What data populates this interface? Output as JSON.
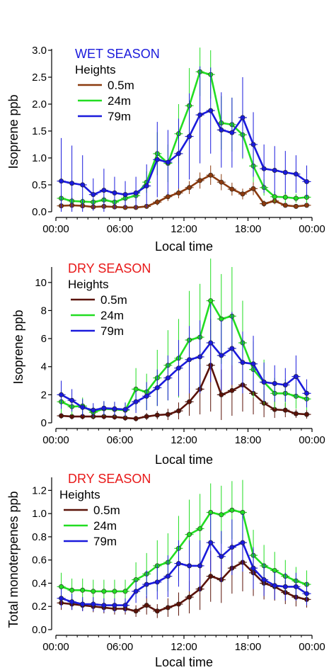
{
  "chart_data": [
    {
      "type": "line",
      "title": "WET SEASON",
      "title_color": "#1a1adc",
      "ylabel": "Isoprene ppb",
      "xlabel": "Local time",
      "ylim": [
        0,
        3.0
      ],
      "yticks": [
        0.0,
        0.5,
        1.0,
        1.5,
        2.0,
        2.5,
        3.0
      ],
      "ytick_labels": [
        "0.0",
        "0.5",
        "1.0",
        "1.5",
        "2.0",
        "2.5",
        "3.0"
      ],
      "xlim": [
        0,
        24
      ],
      "xticks": [
        0,
        6,
        12,
        18,
        24
      ],
      "xtick_labels": [
        "00:00",
        "06:00",
        "12:00",
        "18:00",
        "00:00"
      ],
      "legend_title": "Heights",
      "legend_position": "top-left",
      "x": [
        0.5,
        1.5,
        2.5,
        3.5,
        4.5,
        5.5,
        6.5,
        7.5,
        8.5,
        9.5,
        10.5,
        11.5,
        12.5,
        13.5,
        14.5,
        15.5,
        16.5,
        17.5,
        18.5,
        19.5,
        20.5,
        21.5,
        22.5,
        23.5
      ],
      "series": [
        {
          "name": "0.5m",
          "color": "#8b3a0e",
          "values": [
            0.11,
            0.12,
            0.11,
            0.09,
            0.1,
            0.09,
            0.08,
            0.08,
            0.1,
            0.18,
            0.28,
            0.35,
            0.45,
            0.58,
            0.68,
            0.55,
            0.42,
            0.33,
            0.43,
            0.15,
            0.2,
            0.12,
            0.1,
            0.12
          ],
          "errors": [
            0.03,
            0.03,
            0.03,
            0.03,
            0.03,
            0.03,
            0.03,
            0.03,
            0.03,
            0.06,
            0.08,
            0.1,
            0.12,
            0.15,
            0.18,
            0.15,
            0.12,
            0.1,
            0.12,
            0.06,
            0.06,
            0.04,
            0.03,
            0.04
          ]
        },
        {
          "name": "24m",
          "color": "#22dd22",
          "values": [
            0.25,
            0.2,
            0.19,
            0.18,
            0.22,
            0.18,
            0.25,
            0.3,
            0.55,
            1.08,
            0.9,
            1.45,
            1.97,
            2.6,
            2.55,
            1.65,
            1.62,
            1.43,
            0.85,
            0.45,
            0.28,
            0.27,
            0.25,
            0.27
          ],
          "errors": [
            0.08,
            0.07,
            0.07,
            0.06,
            0.07,
            0.06,
            0.08,
            0.1,
            0.2,
            0.4,
            0.35,
            0.55,
            0.7,
            0.45,
            0.45,
            0.5,
            0.5,
            0.45,
            0.3,
            0.15,
            0.1,
            0.1,
            0.08,
            0.1
          ]
        },
        {
          "name": "79m",
          "color": "#1a1adc",
          "values": [
            0.57,
            0.53,
            0.5,
            0.32,
            0.4,
            0.35,
            0.32,
            0.35,
            0.48,
            0.97,
            0.92,
            1.08,
            1.4,
            1.8,
            1.88,
            1.52,
            1.47,
            1.75,
            1.25,
            0.8,
            0.77,
            0.73,
            0.7,
            0.56
          ],
          "errors": [
            0.8,
            0.7,
            0.55,
            0.3,
            0.4,
            0.3,
            0.25,
            0.3,
            0.4,
            0.7,
            0.6,
            0.65,
            0.8,
            0.9,
            0.8,
            0.7,
            0.65,
            0.75,
            0.6,
            0.45,
            0.45,
            0.4,
            0.35,
            0.3
          ]
        }
      ]
    },
    {
      "type": "line",
      "title": "DRY SEASON",
      "title_color": "#e81818",
      "ylabel": "Isoprene ppb",
      "xlabel": "Local time",
      "ylim": [
        0,
        11
      ],
      "yticks": [
        0,
        2,
        4,
        6,
        8,
        10
      ],
      "ytick_labels": [
        "0",
        "2",
        "4",
        "6",
        "8",
        "10"
      ],
      "xlim": [
        0,
        24
      ],
      "xticks": [
        0,
        6,
        12,
        18,
        24
      ],
      "xtick_labels": [
        "00:00",
        "06:00",
        "12:00",
        "18:00",
        "00:00"
      ],
      "legend_title": "Heights",
      "legend_position": "top-left",
      "x": [
        0.5,
        1.5,
        2.5,
        3.5,
        4.5,
        5.5,
        6.5,
        7.5,
        8.5,
        9.5,
        10.5,
        11.5,
        12.5,
        13.5,
        14.5,
        15.5,
        16.5,
        17.5,
        18.5,
        19.5,
        20.5,
        21.5,
        22.5,
        23.5
      ],
      "series": [
        {
          "name": "0.5m",
          "color": "#5a1208",
          "values": [
            0.5,
            0.45,
            0.45,
            0.45,
            0.45,
            0.42,
            0.35,
            0.3,
            0.45,
            0.55,
            0.6,
            0.85,
            1.5,
            2.4,
            4.1,
            2.0,
            2.3,
            2.7,
            2.1,
            1.4,
            0.95,
            0.9,
            0.65,
            0.6
          ],
          "errors": [
            0.2,
            0.2,
            0.2,
            0.2,
            0.2,
            0.2,
            0.2,
            0.2,
            0.25,
            0.3,
            0.4,
            0.6,
            1.0,
            1.8,
            3.3,
            1.8,
            1.8,
            1.9,
            1.5,
            1.0,
            0.6,
            0.5,
            0.3,
            0.3
          ]
        },
        {
          "name": "24m",
          "color": "#22dd22",
          "values": [
            1.5,
            1.15,
            1.2,
            0.75,
            1.0,
            0.95,
            0.9,
            2.4,
            2.2,
            3.2,
            4.1,
            4.6,
            5.9,
            6.1,
            8.7,
            7.4,
            7.6,
            5.7,
            3.8,
            2.9,
            2.1,
            2.1,
            1.9,
            1.7
          ],
          "errors": [
            0.8,
            0.6,
            0.6,
            0.4,
            0.5,
            0.5,
            0.5,
            1.5,
            1.3,
            2.0,
            2.5,
            2.8,
            3.5,
            3.8,
            3.0,
            3.2,
            3.5,
            3.0,
            2.0,
            1.6,
            1.1,
            1.0,
            0.9,
            0.8
          ]
        },
        {
          "name": "79m",
          "color": "#1a1adc",
          "values": [
            2.0,
            1.6,
            1.1,
            0.9,
            1.05,
            1.0,
            0.95,
            1.5,
            1.9,
            2.5,
            3.2,
            3.9,
            4.5,
            4.7,
            5.7,
            4.8,
            5.3,
            4.3,
            4.2,
            2.9,
            2.8,
            2.7,
            3.3,
            2.1
          ],
          "errors": [
            1.0,
            0.8,
            0.6,
            0.5,
            0.5,
            0.5,
            0.5,
            0.8,
            1.0,
            1.3,
            1.6,
            2.0,
            2.4,
            2.6,
            2.8,
            2.5,
            2.6,
            2.2,
            2.0,
            1.4,
            1.3,
            1.2,
            1.5,
            1.0
          ]
        }
      ]
    },
    {
      "type": "line",
      "title": "DRY SEASON",
      "title_color": "#e81818",
      "ylabel": "Total monoterpenes ppb",
      "xlabel": "Local time",
      "ylim": [
        0,
        1.3
      ],
      "yticks": [
        0.0,
        0.2,
        0.4,
        0.6,
        0.8,
        1.0,
        1.2
      ],
      "ytick_labels": [
        "0.0",
        "0.2",
        "0.4",
        "0.6",
        "0.8",
        "1.0",
        "1.2"
      ],
      "xlim": [
        0,
        24
      ],
      "xticks": [
        0,
        6,
        12,
        18,
        24
      ],
      "xtick_labels": [
        "00:00",
        "06:00",
        "12:00",
        "18:00",
        "00:00"
      ],
      "legend_title": "Heights",
      "legend_position": "top-left",
      "x": [
        0.5,
        1.5,
        2.5,
        3.5,
        4.5,
        5.5,
        6.5,
        7.5,
        8.5,
        9.5,
        10.5,
        11.5,
        12.5,
        13.5,
        14.5,
        15.5,
        16.5,
        17.5,
        18.5,
        19.5,
        20.5,
        21.5,
        22.5,
        23.5
      ],
      "series": [
        {
          "name": "0.5m",
          "color": "#5a1208",
          "values": [
            0.23,
            0.22,
            0.21,
            0.2,
            0.19,
            0.18,
            0.18,
            0.16,
            0.21,
            0.16,
            0.19,
            0.22,
            0.28,
            0.35,
            0.46,
            0.43,
            0.53,
            0.58,
            0.49,
            0.4,
            0.37,
            0.32,
            0.28,
            0.26
          ],
          "errors": [
            0.06,
            0.05,
            0.05,
            0.05,
            0.05,
            0.05,
            0.05,
            0.05,
            0.08,
            0.06,
            0.08,
            0.1,
            0.14,
            0.18,
            0.22,
            0.2,
            0.22,
            0.25,
            0.2,
            0.14,
            0.12,
            0.1,
            0.08,
            0.07
          ]
        },
        {
          "name": "24m",
          "color": "#22dd22",
          "values": [
            0.37,
            0.34,
            0.34,
            0.33,
            0.33,
            0.33,
            0.33,
            0.43,
            0.48,
            0.55,
            0.58,
            0.7,
            0.82,
            0.87,
            1.01,
            0.99,
            1.03,
            1.01,
            0.64,
            0.55,
            0.51,
            0.46,
            0.42,
            0.39
          ],
          "errors": [
            0.12,
            0.1,
            0.1,
            0.1,
            0.1,
            0.1,
            0.1,
            0.15,
            0.18,
            0.22,
            0.25,
            0.28,
            0.3,
            0.3,
            0.25,
            0.25,
            0.25,
            0.28,
            0.22,
            0.18,
            0.16,
            0.14,
            0.12,
            0.12
          ]
        },
        {
          "name": "79m",
          "color": "#1a1adc",
          "values": [
            0.27,
            0.24,
            0.22,
            0.22,
            0.21,
            0.21,
            0.21,
            0.33,
            0.39,
            0.41,
            0.46,
            0.57,
            0.55,
            0.55,
            0.75,
            0.63,
            0.71,
            0.75,
            0.53,
            0.43,
            0.38,
            0.37,
            0.37,
            0.31
          ],
          "errors": [
            0.08,
            0.07,
            0.06,
            0.06,
            0.06,
            0.06,
            0.06,
            0.1,
            0.12,
            0.15,
            0.18,
            0.2,
            0.22,
            0.22,
            0.25,
            0.22,
            0.24,
            0.25,
            0.18,
            0.14,
            0.12,
            0.12,
            0.12,
            0.1
          ]
        }
      ]
    }
  ]
}
